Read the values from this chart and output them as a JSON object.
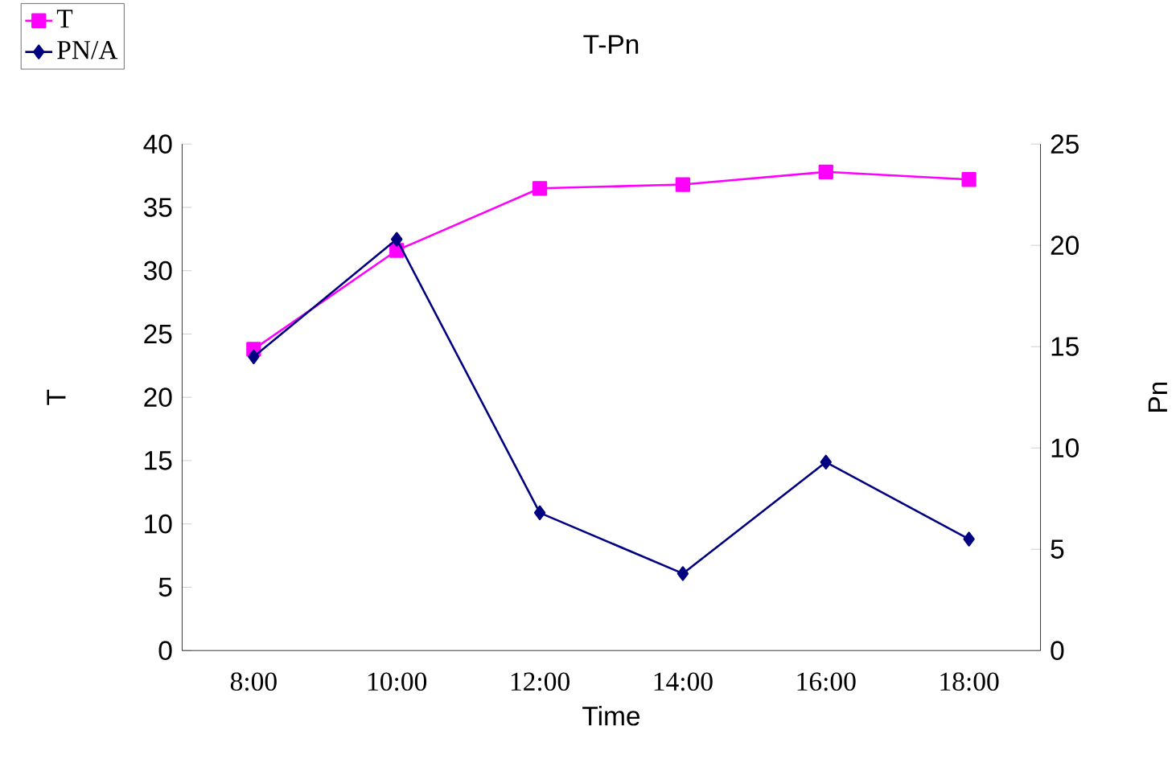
{
  "chart_data": {
    "type": "line",
    "title": "T-Pn",
    "xlabel": "Time",
    "ylabel": "T",
    "y2label": "Pn",
    "categories": [
      "8:00",
      "10:00",
      "12:00",
      "14:00",
      "16:00",
      "18:00"
    ],
    "series": [
      {
        "name": "T",
        "color": "#ff00ff",
        "marker": "square",
        "values": [
          23.8,
          31.6,
          36.5,
          36.8,
          37.8,
          37.2
        ]
      },
      {
        "name": "PN/A",
        "color": "#000080",
        "marker": "diamond",
        "axis": "y2",
        "values": [
          14.5,
          20.3,
          6.8,
          3.8,
          9.3,
          5.5
        ]
      }
    ],
    "ylim": [
      0,
      40
    ],
    "yticks": [
      0,
      5,
      10,
      15,
      20,
      25,
      30,
      35,
      40
    ],
    "y2lim": [
      0,
      25
    ],
    "y2ticks": [
      0,
      5,
      10,
      15,
      20,
      25
    ],
    "legend": "top left"
  }
}
